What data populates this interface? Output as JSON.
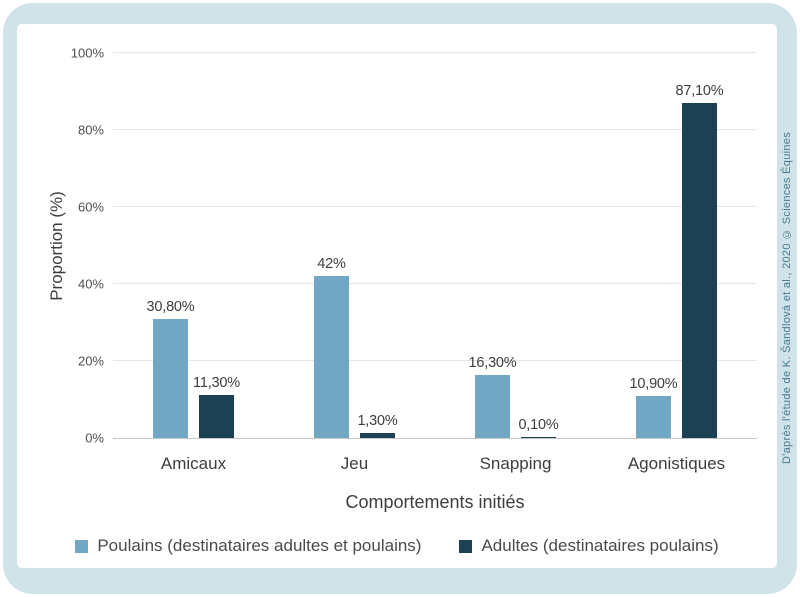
{
  "frame": {
    "background_color": "#cfe3e9",
    "panel_color": "#ffffff"
  },
  "attribution": "D'après l'étude de K. Šandlová et al., 2020 © Sciences Équines",
  "attribution_color": "#4b7a91",
  "chart_data": {
    "type": "bar",
    "title": "",
    "xlabel": "Comportements initiés",
    "ylabel": "Proportion (%)",
    "ylim": [
      0,
      100
    ],
    "grid": true,
    "legend_position": "bottom",
    "categories": [
      "Amicaux",
      "Jeu",
      "Snapping",
      "Agonistiques"
    ],
    "yticks": [
      {
        "value": 0,
        "label": "0%"
      },
      {
        "value": 20,
        "label": "20%"
      },
      {
        "value": 40,
        "label": "40%"
      },
      {
        "value": 60,
        "label": "60%"
      },
      {
        "value": 80,
        "label": "80%"
      },
      {
        "value": 100,
        "label": "100%"
      }
    ],
    "series": [
      {
        "name": "Poulains (destinataires adultes et poulains)",
        "color": "#71a7c2",
        "values": [
          30.8,
          42,
          16.3,
          10.9
        ],
        "value_labels": [
          "30,80%",
          "42%",
          "16,30%",
          "10,90%"
        ]
      },
      {
        "name": "Adultes (destinataires poulains)",
        "color": "#1d4154",
        "values": [
          11.3,
          1.3,
          0.1,
          87.1
        ],
        "value_labels": [
          "11,30%",
          "1,30%",
          "0,10%",
          "87,10%"
        ]
      }
    ],
    "colors": {
      "gridline": "#e6e6e6",
      "axis_line": "#c6c6c6",
      "tick_text": "#4f4f4f",
      "label_text": "#3d3d3d"
    }
  }
}
